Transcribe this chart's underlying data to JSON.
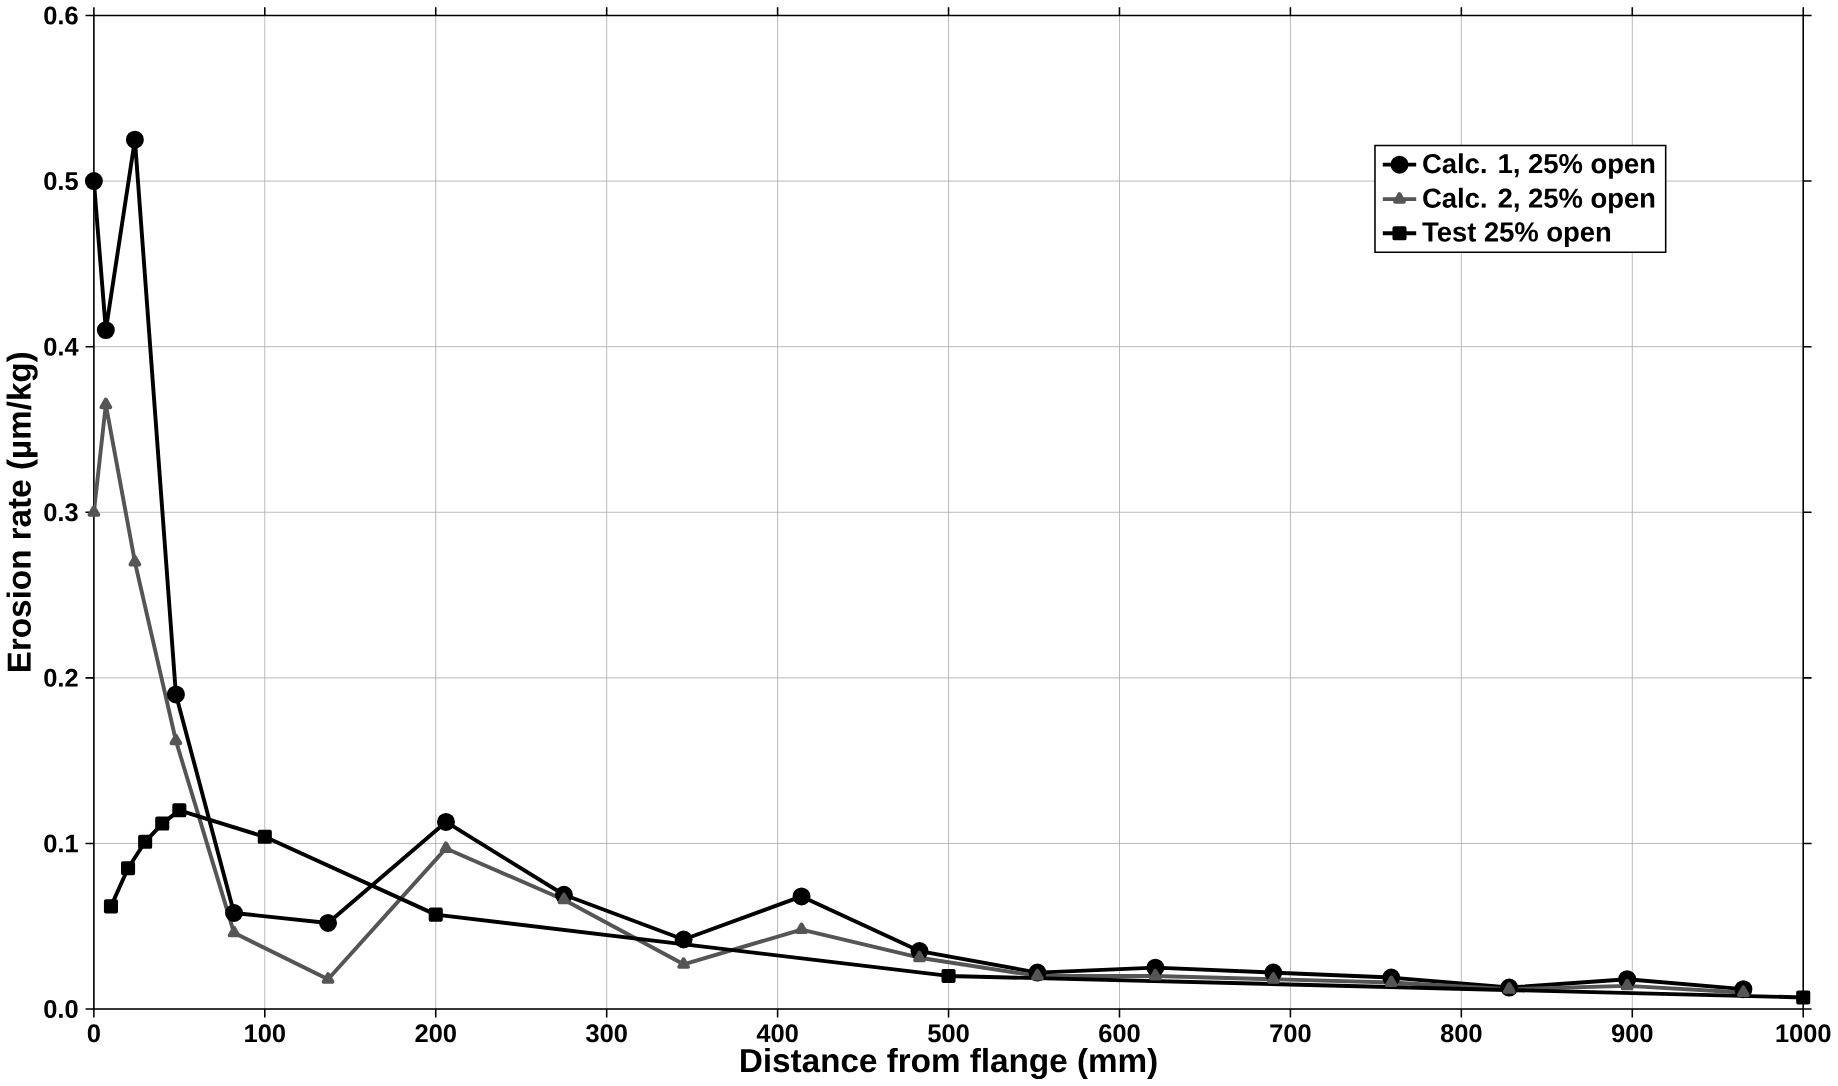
{
  "chart_data": {
    "type": "line",
    "xlabel": "Distance from flange (mm)",
    "ylabel": "Erosion rate (µm/kg)",
    "xlim": [
      0,
      1000
    ],
    "ylim": [
      0,
      0.6
    ],
    "xticks": [
      0,
      100,
      200,
      300,
      400,
      500,
      600,
      700,
      800,
      900,
      1000
    ],
    "yticks": [
      {
        "value": 0,
        "label": "0.0"
      },
      {
        "value": 0.1,
        "label": "0.1"
      },
      {
        "value": 0.2,
        "label": "0.2"
      },
      {
        "value": 0.3,
        "label": "0.3"
      },
      {
        "value": 0.4,
        "label": "0.4"
      },
      {
        "value": 0.5,
        "label": "0.5"
      },
      {
        "value": 0.6,
        "label": "0.6"
      }
    ],
    "grid": true,
    "legend": "top right",
    "line_style": "solid",
    "series": [
      {
        "name": "Calc. 1, 25% open",
        "color": "#000000",
        "marker": "circle",
        "x": [
          0,
          7,
          24,
          48,
          82,
          137,
          206,
          275,
          345,
          414,
          483,
          552,
          621,
          690,
          759,
          828,
          897,
          965
        ],
        "values": [
          0.5,
          0.41,
          0.525,
          0.19,
          0.058,
          0.052,
          0.113,
          0.069,
          0.042,
          0.068,
          0.035,
          0.022,
          0.025,
          0.022,
          0.019,
          0.013,
          0.018,
          0.012
        ]
      },
      {
        "name": "Calc. 2, 25% open",
        "color": "#555555",
        "marker": "triangle",
        "x": [
          0,
          7,
          24,
          48,
          82,
          137,
          206,
          275,
          345,
          414,
          483,
          552,
          621,
          690,
          759,
          828,
          897,
          965
        ],
        "values": [
          0.3,
          0.365,
          0.27,
          0.162,
          0.046,
          0.018,
          0.097,
          0.066,
          0.027,
          0.048,
          0.031,
          0.02,
          0.02,
          0.018,
          0.016,
          0.012,
          0.014,
          0.01
        ]
      },
      {
        "name": "Test 25% open",
        "color": "#000000",
        "marker": "square",
        "x": [
          10,
          20,
          30,
          40,
          50,
          100,
          200,
          500,
          1000
        ],
        "values": [
          0.062,
          0.085,
          0.101,
          0.112,
          0.12,
          0.104,
          0.057,
          0.02,
          0.007
        ]
      }
    ]
  }
}
